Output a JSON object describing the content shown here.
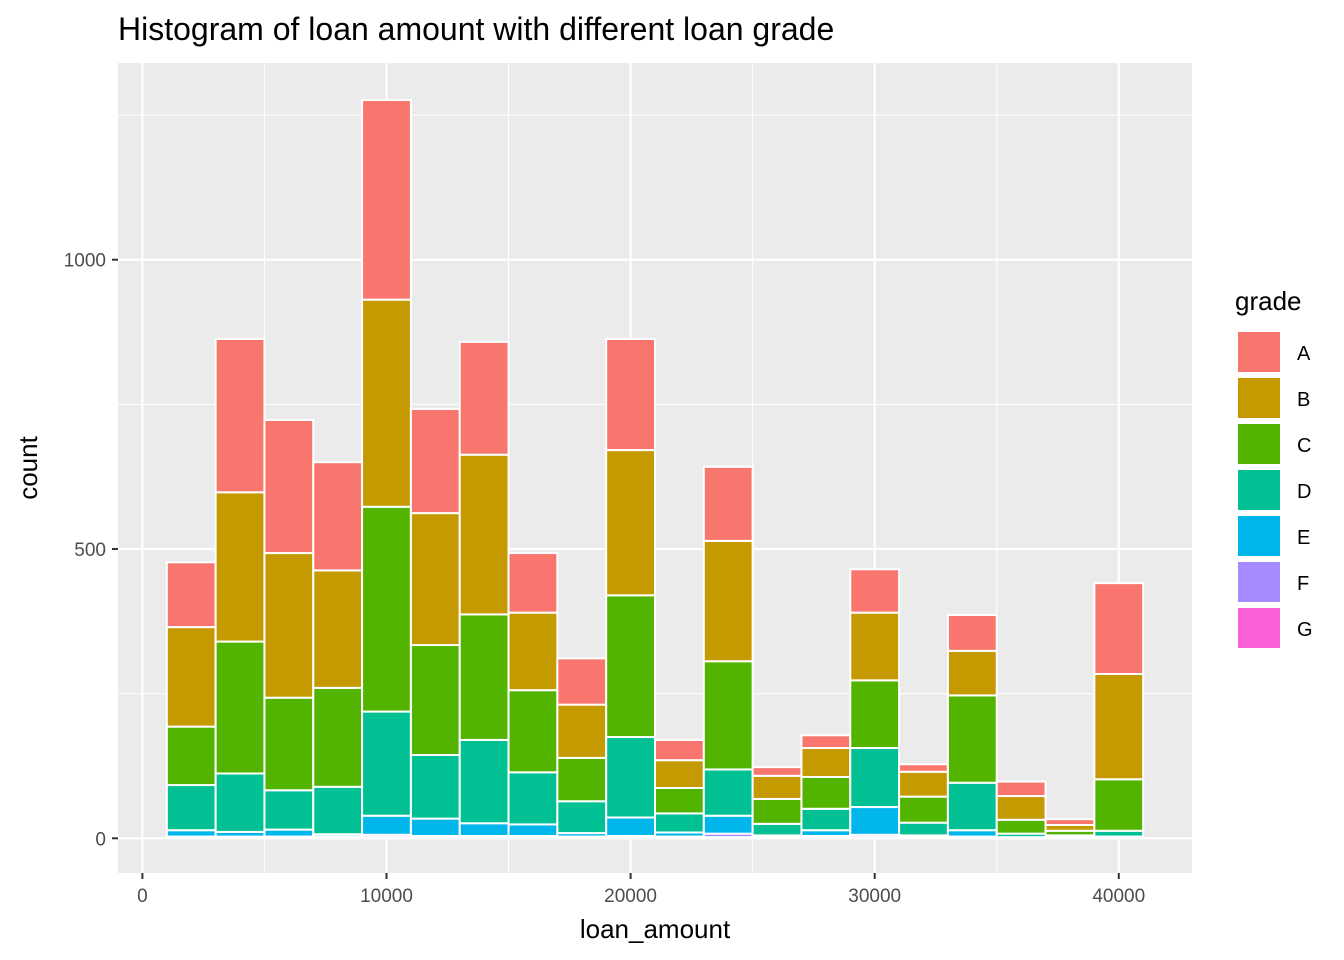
{
  "chart_data": {
    "type": "bar",
    "stacked": true,
    "histogram": true,
    "title": "Histogram of loan amount with different loan grade",
    "xlabel": "loan_amount",
    "ylabel": "count",
    "xlim": [
      -1000,
      43000
    ],
    "ylim": [
      -60,
      1340
    ],
    "xticks": [
      0,
      10000,
      20000,
      30000,
      40000
    ],
    "yticks": [
      0,
      500,
      1000
    ],
    "grid": true,
    "legend": {
      "title": "grade",
      "position": "right"
    },
    "bin_edges": [
      1000,
      3000,
      5000,
      7000,
      9000,
      11000,
      13000,
      15000,
      17000,
      19000,
      21000,
      23000,
      25000,
      27000,
      29000,
      31000,
      33000,
      35000,
      37000,
      39000,
      41000
    ],
    "series": [
      {
        "name": "A",
        "color": "#F8766D",
        "values": [
          112,
          265,
          230,
          187,
          345,
          180,
          195,
          103,
          80,
          192,
          35,
          128,
          15,
          22,
          75,
          13,
          62,
          25,
          10,
          157
        ]
      },
      {
        "name": "B",
        "color": "#C49A00",
        "values": [
          172,
          258,
          250,
          203,
          358,
          228,
          276,
          134,
          92,
          251,
          48,
          208,
          40,
          50,
          117,
          43,
          77,
          41,
          10,
          182
        ]
      },
      {
        "name": "C",
        "color": "#53B400",
        "values": [
          101,
          228,
          160,
          171,
          354,
          190,
          217,
          142,
          75,
          245,
          44,
          187,
          43,
          55,
          117,
          45,
          151,
          24,
          8,
          89
        ]
      },
      {
        "name": "D",
        "color": "#00C094",
        "values": [
          78,
          101,
          68,
          82,
          180,
          110,
          144,
          90,
          55,
          139,
          33,
          80,
          20,
          37,
          102,
          22,
          82,
          6,
          3,
          10
        ]
      },
      {
        "name": "E",
        "color": "#00B6EB",
        "values": [
          11,
          8,
          12,
          4,
          33,
          30,
          22,
          20,
          6,
          32,
          7,
          31,
          3,
          10,
          48,
          3,
          11,
          1,
          1,
          1
        ]
      },
      {
        "name": "F",
        "color": "#A58AFF",
        "values": [
          2,
          2,
          2,
          2,
          4,
          3,
          3,
          3,
          2,
          3,
          2,
          6,
          1,
          3,
          4,
          1,
          2,
          1,
          1,
          1
        ]
      },
      {
        "name": "G",
        "color": "#FB61D7",
        "values": [
          1,
          1,
          1,
          1,
          2,
          1,
          1,
          1,
          1,
          1,
          1,
          2,
          1,
          1,
          2,
          1,
          1,
          0,
          0,
          1
        ]
      }
    ]
  }
}
